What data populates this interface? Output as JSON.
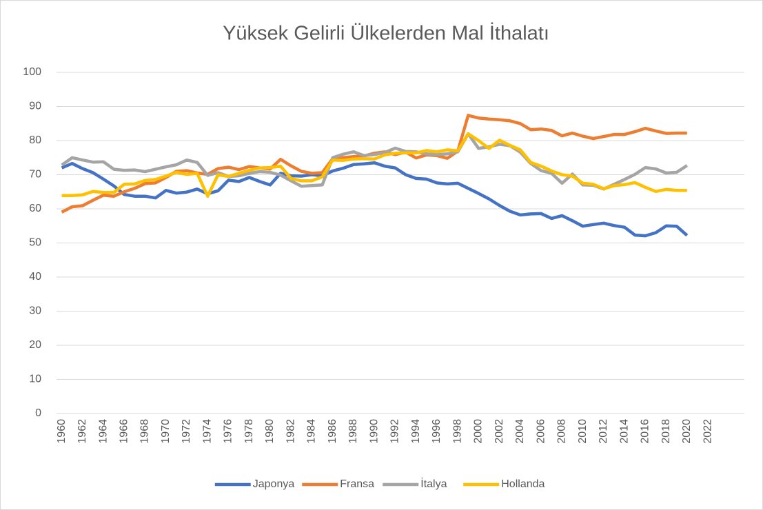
{
  "chart_data": {
    "type": "line",
    "title": "Yüksek Gelirli Ülkelerden Mal İthalatı",
    "x": [
      1960,
      1961,
      1962,
      1963,
      1964,
      1965,
      1966,
      1967,
      1968,
      1969,
      1970,
      1971,
      1972,
      1973,
      1974,
      1975,
      1976,
      1977,
      1978,
      1979,
      1980,
      1981,
      1982,
      1983,
      1984,
      1985,
      1986,
      1987,
      1988,
      1989,
      1990,
      1991,
      1992,
      1993,
      1994,
      1995,
      1996,
      1997,
      1998,
      1999,
      2000,
      2001,
      2002,
      2003,
      2004,
      2005,
      2006,
      2007,
      2008,
      2009,
      2010,
      2011,
      2012,
      2013,
      2014,
      2015,
      2016,
      2017,
      2018,
      2019,
      2020
    ],
    "xlim": [
      1959.5,
      2025.5
    ],
    "xticks": [
      1960,
      1962,
      1964,
      1966,
      1968,
      1970,
      1972,
      1974,
      1976,
      1978,
      1980,
      1982,
      1984,
      1986,
      1988,
      1990,
      1992,
      1994,
      1996,
      1998,
      2000,
      2002,
      2004,
      2006,
      2008,
      2010,
      2012,
      2014,
      2016,
      2018,
      2020,
      2022
    ],
    "ylim": [
      0,
      100
    ],
    "yticks": [
      0,
      10,
      20,
      30,
      40,
      50,
      60,
      70,
      80,
      90,
      100
    ],
    "grid": true,
    "legend": "bottom",
    "series": [
      {
        "name": "Japonya",
        "color": "#4472c4",
        "values": [
          72,
          73.3,
          71.8,
          70.6,
          68.7,
          66.7,
          64.2,
          63.7,
          63.7,
          63.2,
          65.4,
          64.6,
          64.9,
          65.8,
          64.4,
          65.3,
          68.4,
          68,
          69.2,
          68,
          67,
          70.4,
          69.7,
          69.6,
          70,
          69.7,
          71.1,
          71.9,
          73,
          73.2,
          73.5,
          72.5,
          72,
          70,
          68.9,
          68.7,
          67.6,
          67.3,
          67.5,
          66,
          64.5,
          62.9,
          61,
          59.3,
          58.2,
          58.5,
          58.6,
          57.2,
          58,
          56.5,
          54.9,
          55.4,
          55.8,
          55.1,
          54.6,
          52.3,
          52.1,
          53,
          55,
          54.9,
          52.2
        ]
      },
      {
        "name": "Fransa",
        "color": "#ed7d31",
        "values": [
          59,
          60.6,
          60.9,
          62.5,
          64,
          63.7,
          65,
          66,
          67.4,
          67.6,
          69.2,
          71,
          71.2,
          70.5,
          70.1,
          71.8,
          72.2,
          71.5,
          72.4,
          72,
          71.7,
          74.5,
          72.6,
          71,
          70.4,
          70.6,
          74.7,
          75,
          75.3,
          75.5,
          76.3,
          76.7,
          75.9,
          76.6,
          74.9,
          75.8,
          75.6,
          74.8,
          76.9,
          87.4,
          86.6,
          86.3,
          86.1,
          85.8,
          85,
          83.2,
          83.4,
          83,
          81.4,
          82.2,
          81.3,
          80.6,
          81.2,
          81.8,
          81.8,
          82.6,
          83.6,
          82.8,
          82.1,
          82.2,
          82.2
        ]
      },
      {
        "name": "İtalya",
        "color": "#a5a5a5",
        "values": [
          72.8,
          75,
          74.3,
          73.7,
          73.8,
          71.6,
          71.3,
          71.4,
          70.9,
          71.6,
          72.3,
          72.9,
          74.3,
          73.6,
          69.8,
          70.6,
          69.5,
          69.7,
          70.4,
          70.9,
          70.7,
          69.9,
          68.2,
          66.6,
          66.8,
          67,
          75,
          76,
          76.7,
          75.6,
          75.9,
          76.5,
          77.8,
          76.8,
          76.7,
          76.1,
          75.9,
          76.1,
          76.7,
          82,
          77.7,
          78.2,
          78.9,
          78.5,
          76.6,
          73.3,
          71.2,
          70.4,
          67.5,
          70.2,
          67,
          66.9,
          65.8,
          67.2,
          68.6,
          70.1,
          72.1,
          71.7,
          70.5,
          70.7,
          72.7
        ]
      },
      {
        "name": "Hollanda",
        "color": "#ffc000",
        "values": [
          63.9,
          63.9,
          64.1,
          65.1,
          64.8,
          64.8,
          67.2,
          67.3,
          68.3,
          68.6,
          69.6,
          70.7,
          70.1,
          70.4,
          63.7,
          70,
          69.5,
          70.4,
          71.3,
          72,
          72.1,
          72.5,
          68.9,
          68.2,
          68.2,
          69.4,
          74.3,
          74.2,
          74.6,
          74.7,
          74.6,
          75.8,
          76.3,
          76.4,
          76.4,
          77.1,
          76.7,
          77.3,
          77,
          82,
          80,
          77.7,
          80.1,
          78.6,
          77.3,
          73.6,
          72.5,
          71.1,
          70,
          69.6,
          67.5,
          67.2,
          65.9,
          66.8,
          67.1,
          67.7,
          66.3,
          65.1,
          65.7,
          65.4,
          65.4
        ]
      }
    ]
  }
}
